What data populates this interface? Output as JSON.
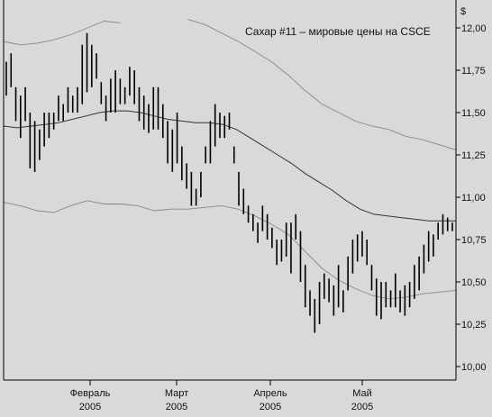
{
  "chart_data": {
    "type": "ohlc",
    "title": "Сахар #11 – мировые цены на CSCE",
    "y_unit_label": "$",
    "ylim": [
      10.0,
      12.05
    ],
    "y_ticks": [
      "10,00",
      "10,25",
      "10,50",
      "10,75",
      "11,00",
      "11,25",
      "11,50",
      "11,75",
      "12,00"
    ],
    "y_tick_values": [
      10.0,
      10.25,
      10.5,
      10.75,
      11.0,
      11.25,
      11.5,
      11.75,
      12.0
    ],
    "x_ticks": [
      {
        "month": "Февраль",
        "year": "2005"
      },
      {
        "month": "Март",
        "year": "2005"
      },
      {
        "month": "Апрель",
        "year": "2005"
      },
      {
        "month": "Май",
        "year": "2005"
      }
    ],
    "grid": false,
    "colors": {
      "background": "#d9d9d9",
      "bars": "#000000",
      "average": "#333333",
      "bands": "#888888",
      "axis": "#000000"
    },
    "bars": [
      {
        "high": 11.8,
        "low": 11.6
      },
      {
        "high": 11.85,
        "low": 11.65
      },
      {
        "high": 11.65,
        "low": 11.45
      },
      {
        "high": 11.6,
        "low": 11.35
      },
      {
        "high": 11.65,
        "low": 11.45
      },
      {
        "high": 11.5,
        "low": 11.17
      },
      {
        "high": 11.45,
        "low": 11.15
      },
      {
        "high": 11.4,
        "low": 11.22
      },
      {
        "high": 11.5,
        "low": 11.3
      },
      {
        "high": 11.5,
        "low": 11.35
      },
      {
        "high": 11.5,
        "low": 11.4
      },
      {
        "high": 11.6,
        "low": 11.45
      },
      {
        "high": 11.55,
        "low": 11.45
      },
      {
        "high": 11.65,
        "low": 11.5
      },
      {
        "high": 11.6,
        "low": 11.5
      },
      {
        "high": 11.65,
        "low": 11.5
      },
      {
        "high": 11.9,
        "low": 11.55
      },
      {
        "high": 11.97,
        "low": 11.62
      },
      {
        "high": 11.9,
        "low": 11.65
      },
      {
        "high": 11.85,
        "low": 11.7
      },
      {
        "high": 11.68,
        "low": 11.55
      },
      {
        "high": 11.6,
        "low": 11.45
      },
      {
        "high": 11.7,
        "low": 11.5
      },
      {
        "high": 11.75,
        "low": 11.5
      },
      {
        "high": 11.7,
        "low": 11.55
      },
      {
        "high": 11.65,
        "low": 11.55
      },
      {
        "high": 11.77,
        "low": 11.6
      },
      {
        "high": 11.75,
        "low": 11.55
      },
      {
        "high": 11.65,
        "low": 11.45
      },
      {
        "high": 11.6,
        "low": 11.4
      },
      {
        "high": 11.55,
        "low": 11.38
      },
      {
        "high": 11.65,
        "low": 11.4
      },
      {
        "high": 11.65,
        "low": 11.4
      },
      {
        "high": 11.55,
        "low": 11.35
      },
      {
        "high": 11.45,
        "low": 11.2
      },
      {
        "high": 11.4,
        "low": 11.15
      },
      {
        "high": 11.5,
        "low": 11.2
      },
      {
        "high": 11.3,
        "low": 11.1
      },
      {
        "high": 11.2,
        "low": 11.05
      },
      {
        "high": 11.15,
        "low": 10.95
      },
      {
        "high": 11.05,
        "low": 10.95
      },
      {
        "high": 11.15,
        "low": 11.0
      },
      {
        "high": 11.3,
        "low": 11.2
      },
      {
        "high": 11.45,
        "low": 11.2
      },
      {
        "high": 11.55,
        "low": 11.3
      },
      {
        "high": 11.5,
        "low": 11.35
      },
      {
        "high": 11.48,
        "low": 11.35
      },
      {
        "high": 11.5,
        "low": 11.4
      },
      {
        "high": 11.3,
        "low": 11.2
      },
      {
        "high": 11.15,
        "low": 10.95
      },
      {
        "high": 11.05,
        "low": 10.9
      },
      {
        "high": 10.95,
        "low": 10.85
      },
      {
        "high": 10.9,
        "low": 10.8
      },
      {
        "high": 10.85,
        "low": 10.73
      },
      {
        "high": 10.95,
        "low": 10.8
      },
      {
        "high": 10.9,
        "low": 10.75
      },
      {
        "high": 10.82,
        "low": 10.7
      },
      {
        "high": 10.75,
        "low": 10.6
      },
      {
        "high": 10.75,
        "low": 10.62
      },
      {
        "high": 10.85,
        "low": 10.65
      },
      {
        "high": 10.85,
        "low": 10.55
      },
      {
        "high": 10.9,
        "low": 10.75
      },
      {
        "high": 10.8,
        "low": 10.5
      },
      {
        "high": 10.6,
        "low": 10.35
      },
      {
        "high": 10.45,
        "low": 10.3
      },
      {
        "high": 10.4,
        "low": 10.2
      },
      {
        "high": 10.5,
        "low": 10.25
      },
      {
        "high": 10.55,
        "low": 10.4
      },
      {
        "high": 10.52,
        "low": 10.38
      },
      {
        "high": 10.48,
        "low": 10.3
      },
      {
        "high": 10.6,
        "low": 10.35
      },
      {
        "high": 10.45,
        "low": 10.32
      },
      {
        "high": 10.65,
        "low": 10.45
      },
      {
        "high": 10.75,
        "low": 10.55
      },
      {
        "high": 10.78,
        "low": 10.62
      },
      {
        "high": 10.8,
        "low": 10.65
      },
      {
        "high": 10.75,
        "low": 10.6
      },
      {
        "high": 10.6,
        "low": 10.45
      },
      {
        "high": 10.52,
        "low": 10.3
      },
      {
        "high": 10.5,
        "low": 10.28
      },
      {
        "high": 10.5,
        "low": 10.35
      },
      {
        "high": 10.45,
        "low": 10.35
      },
      {
        "high": 10.55,
        "low": 10.35
      },
      {
        "high": 10.45,
        "low": 10.32
      },
      {
        "high": 10.48,
        "low": 10.3
      },
      {
        "high": 10.5,
        "low": 10.35
      },
      {
        "high": 10.6,
        "low": 10.4
      },
      {
        "high": 10.65,
        "low": 10.45
      },
      {
        "high": 10.72,
        "low": 10.55
      },
      {
        "high": 10.8,
        "low": 10.62
      },
      {
        "high": 10.78,
        "low": 10.65
      },
      {
        "high": 10.85,
        "low": 10.75
      },
      {
        "high": 10.9,
        "low": 10.78
      },
      {
        "high": 10.88,
        "low": 10.8
      },
      {
        "high": 10.85,
        "low": 10.8
      }
    ],
    "moving_average": [
      11.42,
      11.41,
      11.42,
      11.43,
      11.44,
      11.46,
      11.48,
      11.5,
      11.51,
      11.51,
      11.5,
      11.48,
      11.46,
      11.45,
      11.44,
      11.44,
      11.43,
      11.4,
      11.35,
      11.3,
      11.25,
      11.2,
      11.14,
      11.09,
      11.04,
      10.98,
      10.93,
      10.9,
      10.89,
      10.88,
      10.87,
      10.86,
      10.86,
      10.86
    ],
    "upper_band": [
      11.92,
      11.9,
      11.91,
      11.93,
      11.96,
      12.0,
      12.04,
      12.03,
      null,
      null,
      null,
      12.05,
      12.02,
      11.97,
      11.92,
      11.86,
      11.8,
      11.72,
      11.63,
      11.55,
      11.5,
      11.45,
      11.42,
      11.4,
      11.36,
      11.34,
      11.31,
      11.28
    ],
    "lower_band": [
      10.97,
      10.95,
      10.92,
      10.91,
      10.95,
      10.98,
      10.96,
      10.96,
      10.95,
      10.92,
      10.93,
      10.93,
      10.94,
      10.95,
      10.93,
      10.89,
      10.84,
      10.78,
      10.68,
      10.58,
      10.51,
      10.46,
      10.42,
      10.4,
      10.41,
      10.43,
      10.44,
      10.45
    ]
  }
}
